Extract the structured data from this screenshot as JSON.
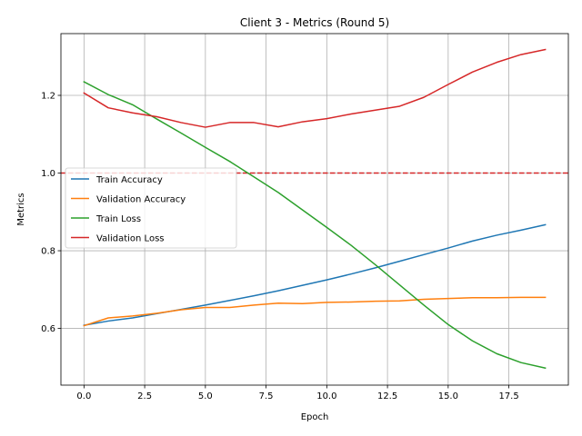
{
  "chart_data": {
    "type": "line",
    "title": "Client 3 - Metrics (Round 5)",
    "xlabel": "Epoch",
    "ylabel": "Metrics",
    "xlim": [
      -0.95,
      19.95
    ],
    "ylim": [
      0.454,
      1.359
    ],
    "x": [
      0,
      1,
      2,
      3,
      4,
      5,
      6,
      7,
      8,
      9,
      10,
      11,
      12,
      13,
      14,
      15,
      16,
      17,
      18,
      19
    ],
    "xticks": [
      0.0,
      2.5,
      5.0,
      7.5,
      10.0,
      12.5,
      15.0,
      17.5
    ],
    "xtick_labels": [
      "0.0",
      "2.5",
      "5.0",
      "7.5",
      "10.0",
      "12.5",
      "15.0",
      "17.5"
    ],
    "yticks": [
      0.6,
      0.8,
      1.0,
      1.2
    ],
    "ytick_labels": [
      "0.6",
      "0.8",
      "1.0",
      "1.2"
    ],
    "grid": true,
    "legend_position": "center-left",
    "reference_line": {
      "y": 1.0,
      "color": "#d62728",
      "style": "dashed"
    },
    "series": [
      {
        "name": "Train Accuracy",
        "color": "#1f77b4",
        "values": [
          0.608,
          0.619,
          0.627,
          0.638,
          0.649,
          0.66,
          0.672,
          0.684,
          0.697,
          0.711,
          0.725,
          0.74,
          0.756,
          0.773,
          0.79,
          0.807,
          0.825,
          0.84,
          0.853,
          0.867
        ]
      },
      {
        "name": "Validation Accuracy",
        "color": "#ff7f0e",
        "values": [
          0.607,
          0.627,
          0.632,
          0.639,
          0.648,
          0.654,
          0.654,
          0.66,
          0.665,
          0.664,
          0.667,
          0.668,
          0.67,
          0.671,
          0.675,
          0.677,
          0.679,
          0.679,
          0.68,
          0.68
        ]
      },
      {
        "name": "Train Loss",
        "color": "#2ca02c",
        "values": [
          1.235,
          1.202,
          1.176,
          1.139,
          1.103,
          1.066,
          1.03,
          0.99,
          0.95,
          0.905,
          0.86,
          0.814,
          0.764,
          0.712,
          0.66,
          0.61,
          0.568,
          0.535,
          0.512,
          0.498
        ]
      },
      {
        "name": "Validation Loss",
        "color": "#d62728",
        "values": [
          1.206,
          1.168,
          1.155,
          1.145,
          1.13,
          1.118,
          1.13,
          1.13,
          1.119,
          1.132,
          1.14,
          1.152,
          1.162,
          1.172,
          1.195,
          1.228,
          1.26,
          1.285,
          1.305,
          1.318
        ]
      }
    ]
  }
}
